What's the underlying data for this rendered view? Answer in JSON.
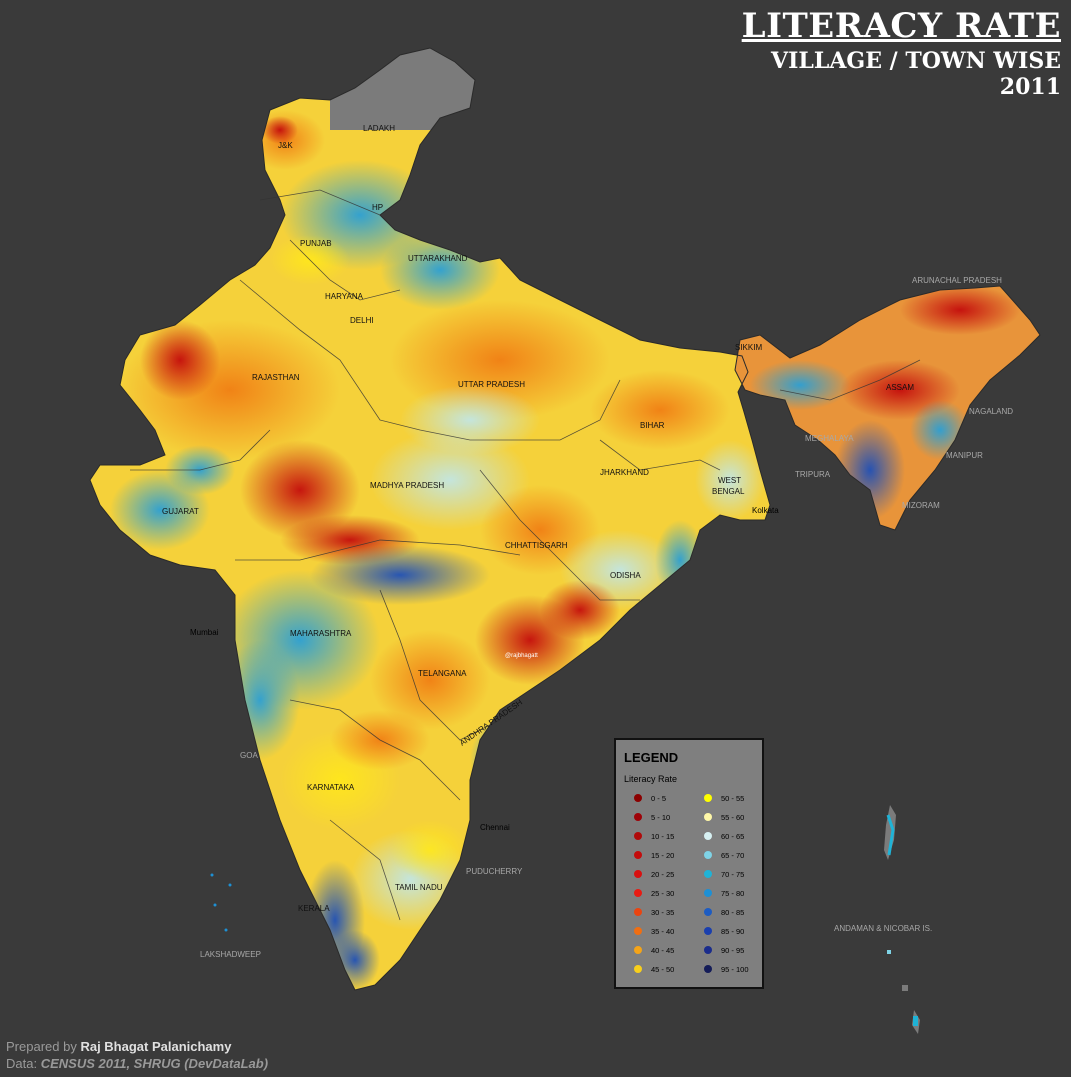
{
  "title": {
    "main": "LITERACY RATE",
    "sub": "VILLAGE / TOWN WISE",
    "year": "2011"
  },
  "legend": {
    "heading": "LEGEND",
    "subheading": "Literacy Rate",
    "items": [
      {
        "label": "0 - 5",
        "color": "#8b0000"
      },
      {
        "label": "5 - 10",
        "color": "#9e0208"
      },
      {
        "label": "10 - 15",
        "color": "#b00a0a"
      },
      {
        "label": "15 - 20",
        "color": "#c40c0c"
      },
      {
        "label": "20 - 25",
        "color": "#d81010"
      },
      {
        "label": "25 - 30",
        "color": "#e81a12"
      },
      {
        "label": "30 - 35",
        "color": "#ea4410"
      },
      {
        "label": "35 - 40",
        "color": "#f06e12"
      },
      {
        "label": "40 - 45",
        "color": "#f5a418"
      },
      {
        "label": "45 - 50",
        "color": "#f8cf1c"
      },
      {
        "label": "50 - 55",
        "color": "#ffff00"
      },
      {
        "label": "55 - 60",
        "color": "#fff8a8"
      },
      {
        "label": "60 - 65",
        "color": "#d6f0f2"
      },
      {
        "label": "65 - 70",
        "color": "#7fd3e6"
      },
      {
        "label": "70 - 75",
        "color": "#1fb3d6"
      },
      {
        "label": "75 - 80",
        "color": "#1e90d4"
      },
      {
        "label": "80 - 85",
        "color": "#1d5cc2"
      },
      {
        "label": "85 - 90",
        "color": "#1a3fae"
      },
      {
        "label": "90 - 95",
        "color": "#1a2c8c"
      },
      {
        "label": "95 - 100",
        "color": "#141c58"
      }
    ]
  },
  "states": {
    "ladakh": "LADAKH",
    "jk": "J&K",
    "hp": "HP",
    "punjab": "PUNJAB",
    "uttarakhand": "UTTARAKHAND",
    "haryana": "HARYANA",
    "delhi": "DELHI",
    "rajasthan": "RAJASTHAN",
    "uttar_pradesh": "UTTAR PRADESH",
    "bihar": "BIHAR",
    "sikkim": "SIKKIM",
    "assam": "ASSAM",
    "jharkhand": "JHARKHAND",
    "west_bengal_1": "WEST",
    "west_bengal_2": "BENGAL",
    "madhya_pradesh": "MADHYA PRADESH",
    "gujarat": "GUJARAT",
    "chhattisgarh": "CHHATTISGARH",
    "odisha": "ODISHA",
    "maharashtra": "MAHARASHTRA",
    "telangana": "TELANGANA",
    "andhra_pradesh": "ANDHRA PRADESH",
    "karnataka": "KARNATAKA",
    "tamil_nadu": "TAMIL NADU",
    "kerala": "KERALA",
    "arunachal_pradesh": "ARUNACHAL PRADESH",
    "nagaland": "NAGALAND",
    "meghalaya": "MEGHALAYA",
    "manipur": "MANIPUR",
    "tripura": "TRIPURA",
    "mizoram": "MIZORAM",
    "goa": "GOA",
    "puducherry": "PUDUCHERRY",
    "lakshadweep": "LAKSHADWEEP",
    "andaman": "ANDAMAN & NICOBAR IS."
  },
  "cities": {
    "mumbai": "Mumbai",
    "kolkata": "Kolkata",
    "chennai": "Chennai"
  },
  "watermark": "@rajbhagatt",
  "credits": {
    "prepared_prefix": "Prepared by",
    "author": "Raj Bhagat Palanichamy",
    "data_prefix": "Data:",
    "source": "CENSUS 2011, SHRUG (DevDataLab)"
  }
}
